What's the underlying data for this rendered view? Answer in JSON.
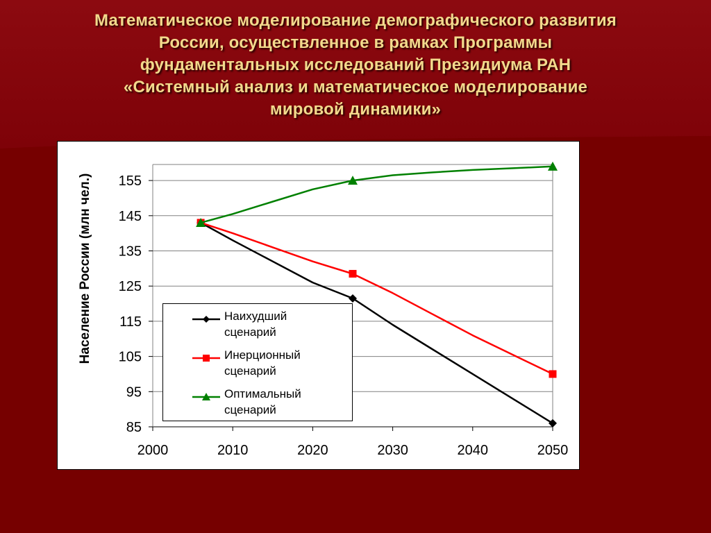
{
  "slide": {
    "title_lines": [
      "Математическое моделирование демографического развития",
      "России, осуществленное в рамках Программы",
      "фундаментальных исследований Президиума РАН",
      "«Системный анализ и математическое моделирование",
      "мировой динамики»"
    ],
    "colors": {
      "background": "#7a0000",
      "title": "#f2d98c",
      "panel": "#ffffff"
    }
  },
  "chart_data": {
    "type": "line",
    "title": "",
    "xlabel": "",
    "ylabel": "Население России (млн чел.)",
    "xlim": [
      2000,
      2050
    ],
    "ylim": [
      85,
      159
    ],
    "xticks": [
      2000,
      2010,
      2020,
      2030,
      2040,
      2050
    ],
    "yticks": [
      85,
      95,
      105,
      115,
      125,
      135,
      145,
      155
    ],
    "grid": "horizontal",
    "legend_position": "bottom-left",
    "series": [
      {
        "name": "Наихудший сценарий",
        "name_lines": [
          "Наихудший",
          "сценарий"
        ],
        "color": "#000000",
        "marker": "diamond",
        "x": [
          2006,
          2010,
          2015,
          2020,
          2025,
          2030,
          2035,
          2040,
          2045,
          2050
        ],
        "y": [
          143,
          138,
          132,
          126,
          121.5,
          114,
          107,
          100,
          93,
          86
        ],
        "marker_x": [
          2006,
          2025,
          2050
        ],
        "marker_y": [
          143,
          121.5,
          86
        ]
      },
      {
        "name": "Инерционный сценарий",
        "name_lines": [
          "Инерционный",
          "сценарий"
        ],
        "color": "#ff0000",
        "marker": "square",
        "x": [
          2006,
          2010,
          2015,
          2020,
          2025,
          2030,
          2035,
          2040,
          2045,
          2050
        ],
        "y": [
          143,
          140,
          136,
          132,
          128.5,
          123,
          117,
          111,
          105.5,
          100
        ],
        "marker_x": [
          2006,
          2025,
          2050
        ],
        "marker_y": [
          143,
          128.5,
          100
        ]
      },
      {
        "name": "Оптимальный сценарий",
        "name_lines": [
          "Оптимальный",
          "сценарий"
        ],
        "color": "#008000",
        "marker": "triangle",
        "x": [
          2006,
          2010,
          2015,
          2020,
          2025,
          2030,
          2035,
          2040,
          2045,
          2050
        ],
        "y": [
          143,
          145.5,
          149,
          152.5,
          155,
          156.5,
          157.3,
          158,
          158.5,
          159
        ],
        "marker_x": [
          2006,
          2025,
          2050
        ],
        "marker_y": [
          143,
          155,
          159
        ]
      }
    ]
  }
}
